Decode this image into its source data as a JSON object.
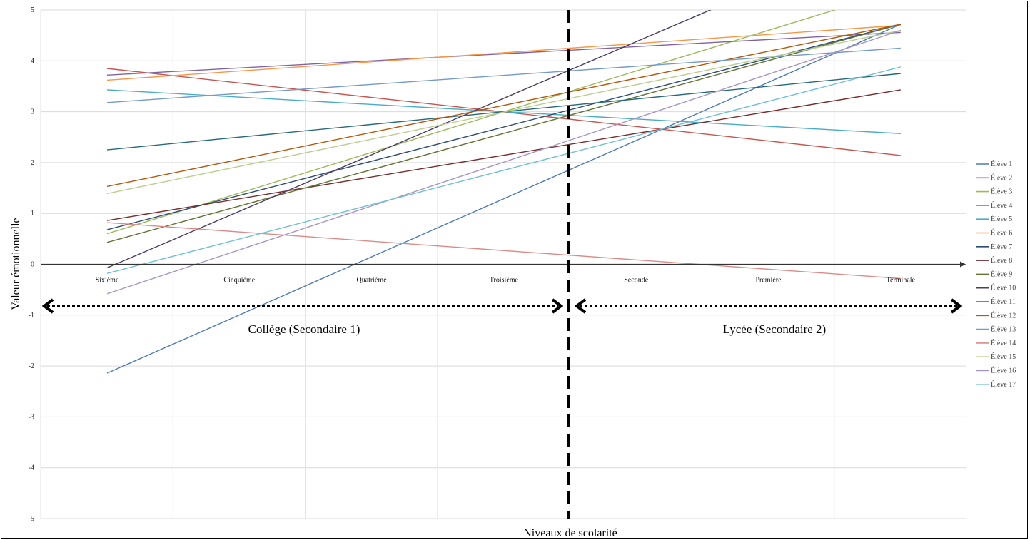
{
  "chart_data": {
    "type": "line",
    "title": "",
    "xlabel": "Niveaux de scolarité",
    "ylabel": "Valeur émotionnelle",
    "ylim": [
      -5,
      5
    ],
    "yticks": [
      5,
      4,
      3,
      2,
      1,
      0,
      -1,
      -2,
      -3,
      -4,
      -5
    ],
    "grid": true,
    "legend_position": "right",
    "categories": [
      "Sixième",
      "Cinquième",
      "Quatrième",
      "Troisième",
      "Seconde",
      "Première",
      "Terminale"
    ],
    "series": [
      {
        "name": "Élève 1",
        "color": "#4a7ab8",
        "start": -2.14,
        "end": 4.72
      },
      {
        "name": "Élève 2",
        "color": "#c8554d",
        "start": 3.85,
        "end": 2.14
      },
      {
        "name": "Élève 3",
        "color": "#9bbb59",
        "start": 0.6,
        "end": 5.4
      },
      {
        "name": "Élève 4",
        "color": "#8064a2",
        "start": 3.72,
        "end": 4.56
      },
      {
        "name": "Élève 5",
        "color": "#4bacc6",
        "start": 3.43,
        "end": 2.57
      },
      {
        "name": "Élève 6",
        "color": "#f79646",
        "start": 3.62,
        "end": 4.7
      },
      {
        "name": "Élève 7",
        "color": "#2c4d75",
        "start": 0.68,
        "end": 4.72
      },
      {
        "name": "Élève 8",
        "color": "#772c2a",
        "start": 0.86,
        "end": 3.43
      },
      {
        "name": "Élève 9",
        "color": "#5f7530",
        "start": 0.43,
        "end": 4.72
      },
      {
        "name": "Élève 10",
        "color": "#4d3b62",
        "start": -0.07,
        "end": 6.6
      },
      {
        "name": "Élève 11",
        "color": "#276a7c",
        "start": 2.25,
        "end": 3.75
      },
      {
        "name": "Élève 12",
        "color": "#b65708",
        "start": 1.53,
        "end": 4.72
      },
      {
        "name": "Élève 13",
        "color": "#729aca",
        "start": 3.18,
        "end": 4.25
      },
      {
        "name": "Élève 14",
        "color": "#d98b88",
        "start": 0.82,
        "end": -0.28
      },
      {
        "name": "Élève 15",
        "color": "#b8d08c",
        "start": 1.39,
        "end": 4.6
      },
      {
        "name": "Élève 16",
        "color": "#a995c1",
        "start": -0.58,
        "end": 4.6
      },
      {
        "name": "Élève 17",
        "color": "#6fc0d6",
        "start": -0.18,
        "end": 3.88
      }
    ],
    "annotations": {
      "left_region": "Collège (Secondaire 1)",
      "right_region": "Lycée (Secondaire 2)"
    }
  }
}
